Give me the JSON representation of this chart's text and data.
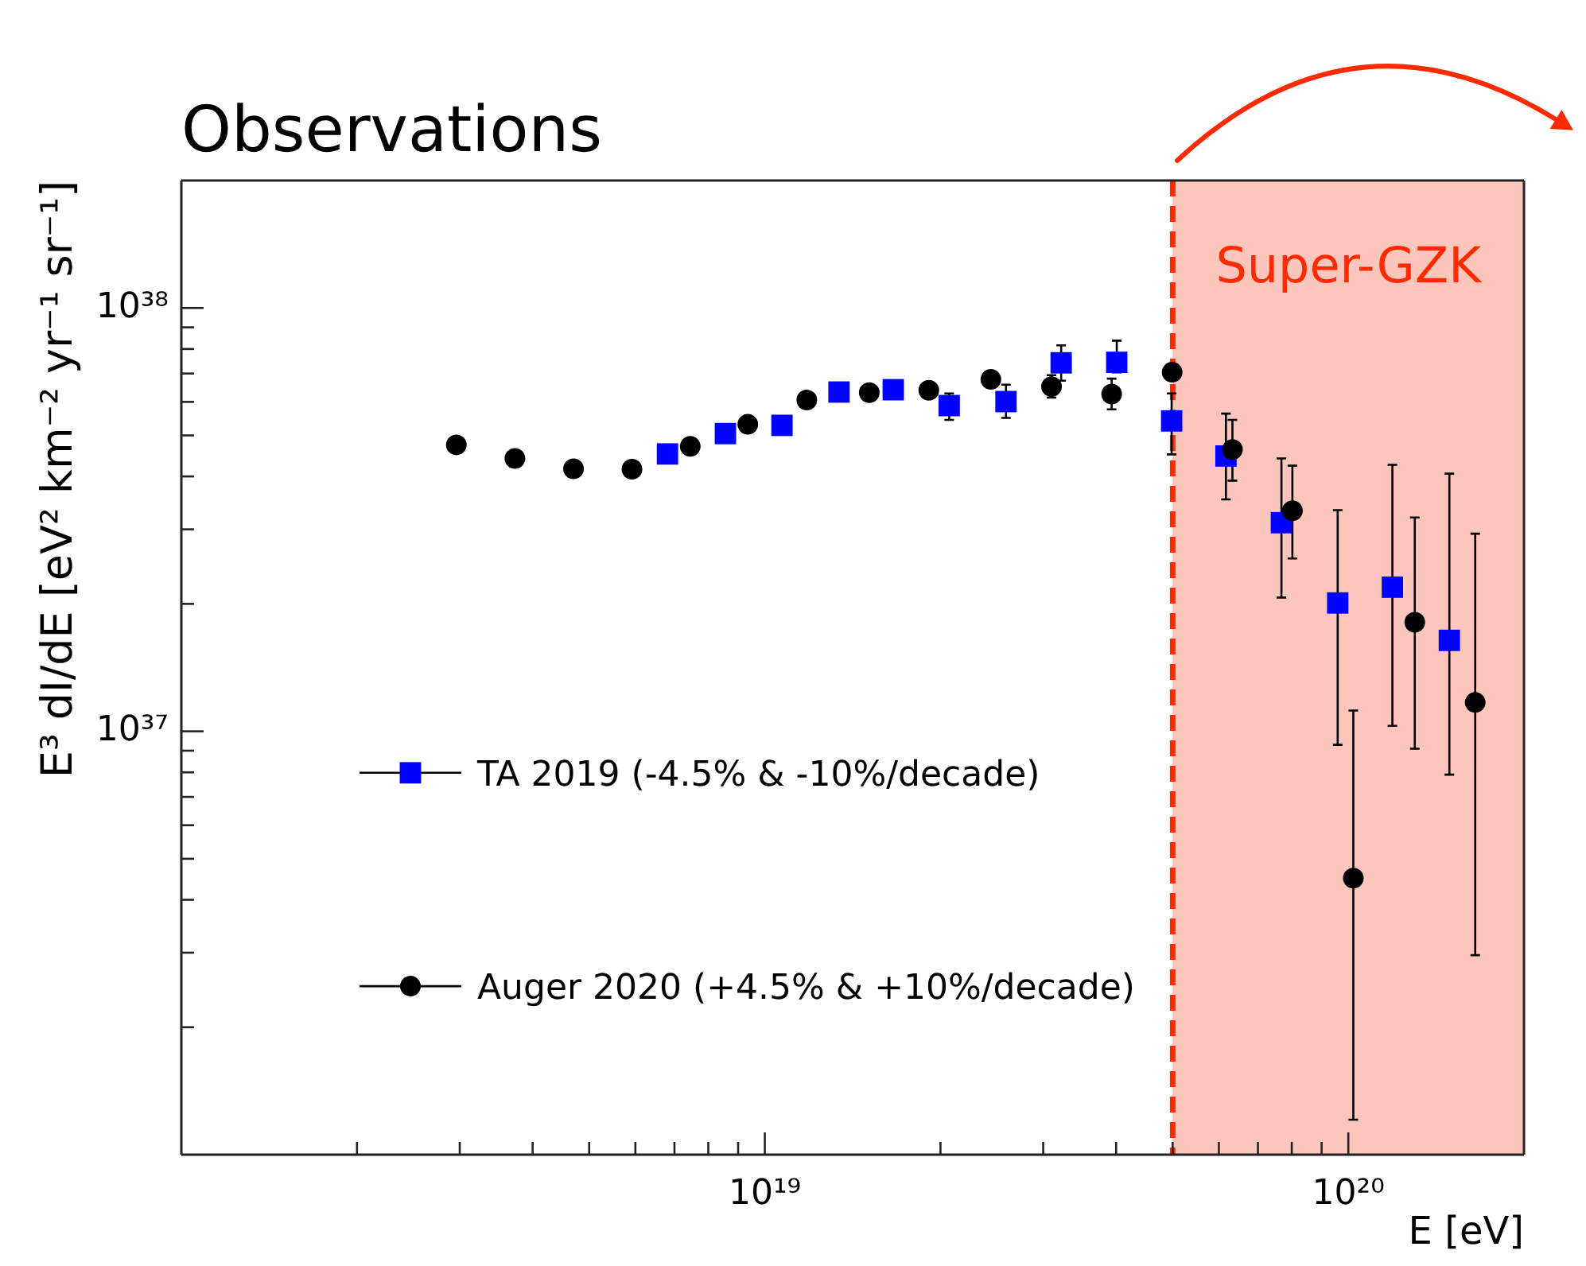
{
  "chart_data": {
    "type": "scatter",
    "title": "Observations",
    "xlabel": "E [eV]",
    "ylabel": "E³ dI/dE [eV² km⁻² yr⁻¹ sr⁻¹]",
    "log": "xy",
    "xlim": [
      1e+18,
      2e+20
    ],
    "ylim": [
      1e+36,
      2e+38
    ],
    "xticks": [
      {
        "value": 2e+18,
        "label": null
      },
      {
        "value": 3e+18,
        "label": null
      },
      {
        "value": 4e+18,
        "label": null
      },
      {
        "value": 5e+18,
        "label": null
      },
      {
        "value": 6e+18,
        "label": null
      },
      {
        "value": 7e+18,
        "label": null
      },
      {
        "value": 8e+18,
        "label": null
      },
      {
        "value": 9e+18,
        "label": null
      },
      {
        "value": 1e+19,
        "label": "10¹⁹"
      },
      {
        "value": 2e+19,
        "label": null
      },
      {
        "value": 3e+19,
        "label": null
      },
      {
        "value": 4e+19,
        "label": null
      },
      {
        "value": 5e+19,
        "label": null
      },
      {
        "value": 6e+19,
        "label": null
      },
      {
        "value": 7e+19,
        "label": null
      },
      {
        "value": 8e+19,
        "label": null
      },
      {
        "value": 9e+19,
        "label": null
      },
      {
        "value": 1e+20,
        "label": "10²⁰"
      }
    ],
    "yticks": [
      {
        "value": 2e+36,
        "label": null
      },
      {
        "value": 3e+36,
        "label": null
      },
      {
        "value": 4e+36,
        "label": null
      },
      {
        "value": 5e+36,
        "label": null
      },
      {
        "value": 6e+36,
        "label": null
      },
      {
        "value": 7e+36,
        "label": null
      },
      {
        "value": 8e+36,
        "label": null
      },
      {
        "value": 9e+36,
        "label": null
      },
      {
        "value": 1e+37,
        "label": "10³⁷"
      },
      {
        "value": 2e+37,
        "label": null
      },
      {
        "value": 3e+37,
        "label": null
      },
      {
        "value": 4e+37,
        "label": null
      },
      {
        "value": 5e+37,
        "label": null
      },
      {
        "value": 6e+37,
        "label": null
      },
      {
        "value": 7e+37,
        "label": null
      },
      {
        "value": 8e+37,
        "label": null
      },
      {
        "value": 9e+37,
        "label": null
      },
      {
        "value": 1e+38,
        "label": "10³⁸"
      }
    ],
    "legend": "left",
    "series": [
      {
        "name": "TA 2019 (-4.5% & -10%/decade)",
        "color": "#0000ff",
        "marker": "square",
        "x": [
          6.81e+18,
          8.56e+18,
          1.07e+19,
          1.34e+19,
          1.66e+19,
          2.07e+19,
          2.59e+19,
          3.22e+19,
          4.01e+19,
          4.98e+19,
          6.17e+19,
          7.68e+19,
          9.59e+19,
          1.19e+20,
          1.49e+20
        ],
        "values": [
          4.52e+37,
          5.05e+37,
          5.28e+37,
          6.33e+37,
          6.41e+37,
          5.88e+37,
          6.01e+37,
          7.42e+37,
          7.44e+37,
          5.41e+37,
          4.47e+37,
          3.11e+37,
          2.01e+37,
          2.19e+37,
          1.64e+37
        ],
        "errors": [
          null,
          null,
          null,
          null,
          null,
          [
            5.44e+37,
            6.28e+37
          ],
          [
            5.5e+37,
            6.59e+37
          ],
          [
            6.73e+37,
            8.16e+37
          ],
          [
            7.05e+37,
            8.37e+37
          ],
          [
            4.51e+37,
            6.28e+37
          ],
          [
            3.53e+37,
            5.63e+37
          ],
          [
            2.07e+37,
            4.41e+37
          ],
          [
            9.29e+36,
            3.33e+37
          ],
          [
            1.03e+37,
            4.26e+37
          ],
          [
            7.9e+36,
            4.06e+37
          ]
        ]
      },
      {
        "name": "Auger 2020 (+4.5% & +10%/decade)",
        "color": "#000000",
        "marker": "circle",
        "x": [
          2.96e+18,
          3.73e+18,
          4.7e+18,
          5.92e+18,
          7.45e+18,
          9.35e+18,
          1.18e+19,
          1.51e+19,
          1.91e+19,
          2.44e+19,
          3.1e+19,
          3.93e+19,
          4.99e+19,
          6.33e+19,
          8.02e+19,
          1.02e+20,
          1.3e+20,
          1.65e+20
        ],
        "values": [
          4.75e+37,
          4.41e+37,
          4.17e+37,
          4.16e+37,
          4.71e+37,
          5.31e+37,
          6.06e+37,
          6.31e+37,
          6.39e+37,
          6.78e+37,
          6.52e+37,
          6.26e+37,
          7.05e+37,
          4.63e+37,
          3.32e+37,
          4.5e+36,
          1.81e+37,
          1.17e+37
        ],
        "errors": [
          null,
          null,
          null,
          null,
          null,
          null,
          null,
          null,
          null,
          null,
          [
            6.14e+37,
            6.94e+37
          ],
          [
            5.76e+37,
            6.81e+37
          ],
          null,
          [
            3.91e+37,
            5.44e+37
          ],
          [
            2.56e+37,
            4.24e+37
          ],
          [
            1.21e+36,
            1.12e+37
          ],
          [
            9.1e+36,
            3.2e+37
          ],
          [
            2.96e+36,
            2.93e+37
          ]
        ]
      }
    ],
    "ref_lines": [
      {
        "axis": "x",
        "value": 5e+19,
        "color": "#ff2a00",
        "line_style": "dashed"
      }
    ],
    "bands": [
      {
        "axis": "x",
        "from": 5e+19,
        "to": 2e+20,
        "label": "Super-GZK",
        "color": "#fdc6bd"
      }
    ]
  }
}
